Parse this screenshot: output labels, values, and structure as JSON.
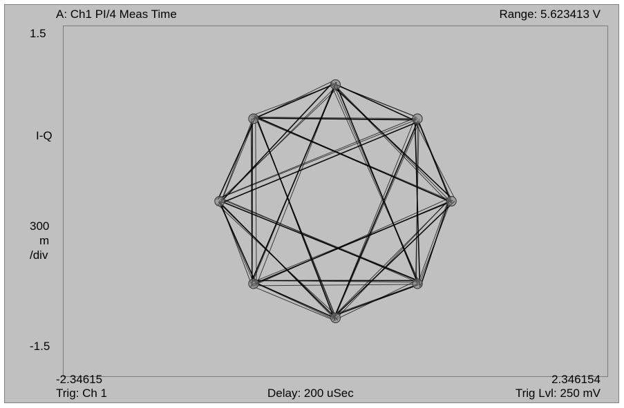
{
  "header": {
    "trace_label": "A: Ch1 PI/4 Meas Time",
    "range_label": "Range: 5.623413  V"
  },
  "footer": {
    "trigger": "Trig: Ch 1",
    "delay": "Delay: 200 uSec",
    "trigger_level": "Trig Lvl: 250 mV"
  },
  "axis": {
    "y_top": "1.5",
    "y_bottom": "-1.5",
    "y_name": "I-Q",
    "y_scale_line1": "300",
    "y_scale_line2": "m",
    "y_scale_line3": "/div",
    "x_left": "-2.34615",
    "x_right": "2.346154"
  },
  "chart_data": {
    "type": "scatter",
    "description_of_trace": "PI/4 DQPSK constellation trajectory (I-Q diagram)",
    "xlim": [
      -2.34615,
      2.346154
    ],
    "ylim": [
      -1.5,
      1.5
    ],
    "grid": false,
    "trace_color": "#000000",
    "background_color": "#c0c0c0",
    "constellation_points": [
      {
        "i": 0.0,
        "q": 1.0
      },
      {
        "i": 0.707,
        "q": 0.707
      },
      {
        "i": 1.0,
        "q": 0.0
      },
      {
        "i": 0.707,
        "q": -0.707
      },
      {
        "i": 0.0,
        "q": -1.0
      },
      {
        "i": -0.707,
        "q": -0.707
      },
      {
        "i": -1.0,
        "q": 0.0
      },
      {
        "i": -0.707,
        "q": 0.707
      }
    ],
    "transitions": [
      [
        0,
        1
      ],
      [
        1,
        2
      ],
      [
        2,
        3
      ],
      [
        3,
        4
      ],
      [
        4,
        5
      ],
      [
        5,
        6
      ],
      [
        6,
        7
      ],
      [
        7,
        0
      ],
      [
        0,
        3
      ],
      [
        0,
        5
      ],
      [
        1,
        4
      ],
      [
        1,
        6
      ],
      [
        2,
        5
      ],
      [
        2,
        7
      ],
      [
        3,
        6
      ],
      [
        4,
        7
      ],
      [
        0,
        2
      ],
      [
        2,
        4
      ],
      [
        4,
        6
      ],
      [
        6,
        0
      ],
      [
        1,
        3
      ],
      [
        3,
        5
      ],
      [
        5,
        7
      ],
      [
        7,
        1
      ]
    ]
  }
}
